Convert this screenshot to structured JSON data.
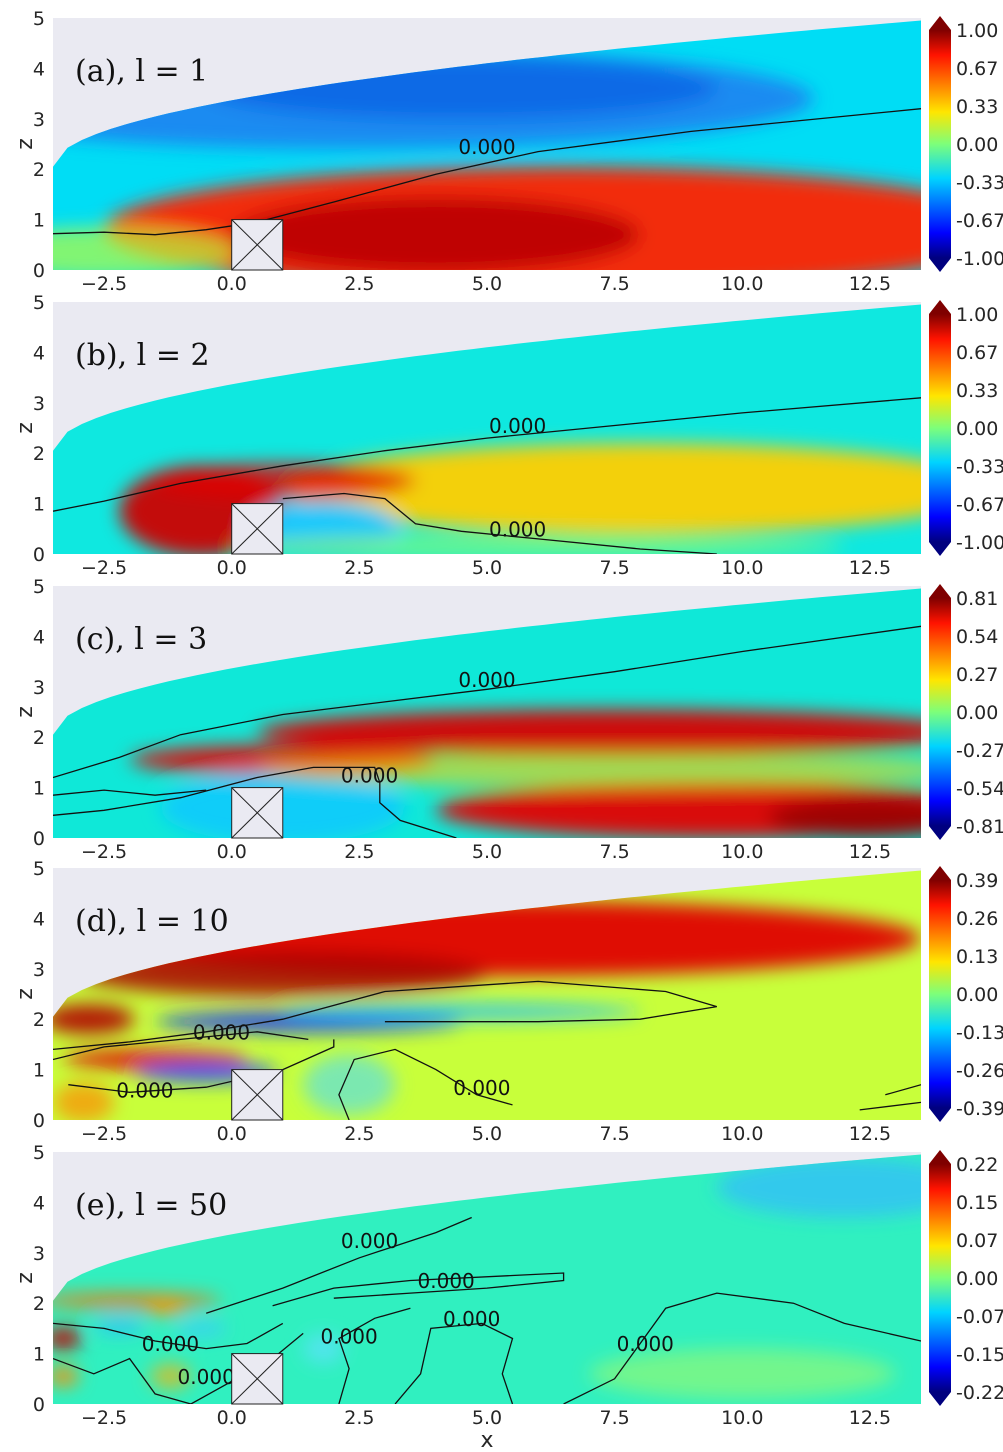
{
  "figure": {
    "xlabel": "x",
    "ylabel": "z",
    "background_color": "#eaeaf2",
    "colormap": "jet",
    "body": "square obstacle, x 0 to 1, z 0 to 1"
  },
  "chart_data": [
    {
      "type": "heatmap",
      "title": "(a), l = 1",
      "xlim": [
        -3.5,
        13.5
      ],
      "ylim": [
        0,
        5
      ],
      "xticks": [
        "−2.5",
        "0.0",
        "2.5",
        "5.0",
        "7.5",
        "10.0",
        "12.5"
      ],
      "yticks": [
        "0",
        "1",
        "2",
        "3",
        "4",
        "5"
      ],
      "colorbar": {
        "min": -1.0,
        "max": 1.0,
        "ticks": [
          "1.00",
          "0.67",
          "0.33",
          "0.00",
          "-0.33",
          "-0.67",
          "-1.00"
        ]
      },
      "contours": [
        {
          "level": "0.000",
          "label_x": 5.0,
          "label_z": 2.3
        }
      ]
    },
    {
      "type": "heatmap",
      "title": "(b), l = 2",
      "xlim": [
        -3.5,
        13.5
      ],
      "ylim": [
        0,
        5
      ],
      "xticks": [
        "−2.5",
        "0.0",
        "2.5",
        "5.0",
        "7.5",
        "10.0",
        "12.5"
      ],
      "yticks": [
        "0",
        "1",
        "2",
        "3",
        "4",
        "5"
      ],
      "colorbar": {
        "min": -1.0,
        "max": 1.0,
        "ticks": [
          "1.00",
          "0.67",
          "0.33",
          "0.00",
          "-0.33",
          "-0.67",
          "-1.00"
        ]
      },
      "contours": [
        {
          "level": "0.000",
          "label_x": 5.6,
          "label_z": 2.4
        },
        {
          "level": "0.000",
          "label_x": 5.6,
          "label_z": 0.35
        }
      ]
    },
    {
      "type": "heatmap",
      "title": "(c), l = 3",
      "xlim": [
        -3.5,
        13.5
      ],
      "ylim": [
        0,
        5
      ],
      "xticks": [
        "−2.5",
        "0.0",
        "2.5",
        "5.0",
        "7.5",
        "10.0",
        "12.5"
      ],
      "yticks": [
        "0",
        "1",
        "2",
        "3",
        "4",
        "5"
      ],
      "colorbar": {
        "min": -0.81,
        "max": 0.81,
        "ticks": [
          "0.81",
          "0.54",
          "0.27",
          "0.00",
          "-0.27",
          "-0.54",
          "-0.81"
        ]
      },
      "contours": [
        {
          "level": "0.000",
          "label_x": 5.0,
          "label_z": 3.0
        },
        {
          "level": "0.000",
          "label_x": 2.7,
          "label_z": 1.1
        }
      ]
    },
    {
      "type": "heatmap",
      "title": "(d), l = 10",
      "xlim": [
        -3.5,
        13.5
      ],
      "ylim": [
        0,
        5
      ],
      "xticks": [
        "−2.5",
        "0.0",
        "2.5",
        "5.0",
        "7.5",
        "10.0",
        "12.5"
      ],
      "yticks": [
        "0",
        "1",
        "2",
        "3",
        "4",
        "5"
      ],
      "colorbar": {
        "min": -0.39,
        "max": 0.39,
        "ticks": [
          "0.39",
          "0.26",
          "0.13",
          "0.00",
          "-0.13",
          "-0.26",
          "-0.39"
        ]
      },
      "contours": [
        {
          "level": "0.000",
          "label_x": -0.2,
          "label_z": 1.6
        },
        {
          "level": "0.000",
          "label_x": -1.7,
          "label_z": 0.45
        },
        {
          "level": "0.000",
          "label_x": 4.9,
          "label_z": 0.5
        }
      ]
    },
    {
      "type": "heatmap",
      "title": "(e), l = 50",
      "xlim": [
        -3.5,
        13.5
      ],
      "ylim": [
        0,
        5
      ],
      "xticks": [
        "−2.5",
        "0.0",
        "2.5",
        "5.0",
        "7.5",
        "10.0",
        "12.5"
      ],
      "yticks": [
        "0",
        "1",
        "2",
        "3",
        "4",
        "5"
      ],
      "colorbar": {
        "min": -0.22,
        "max": 0.22,
        "ticks": [
          "0.22",
          "0.15",
          "0.07",
          "0.00",
          "-0.07",
          "-0.15",
          "-0.22"
        ]
      },
      "contours": [
        {
          "level": "0.000",
          "label_x": 2.7,
          "label_z": 3.1
        },
        {
          "level": "0.000",
          "label_x": 4.2,
          "label_z": 2.3
        },
        {
          "level": "0.000",
          "label_x": 4.7,
          "label_z": 1.55
        },
        {
          "level": "0.000",
          "label_x": 2.3,
          "label_z": 1.2
        },
        {
          "level": "0.000",
          "label_x": -1.2,
          "label_z": 1.05
        },
        {
          "level": "0.000",
          "label_x": -0.5,
          "label_z": 0.4
        },
        {
          "level": "0.000",
          "label_x": 8.1,
          "label_z": 1.05
        }
      ]
    }
  ]
}
